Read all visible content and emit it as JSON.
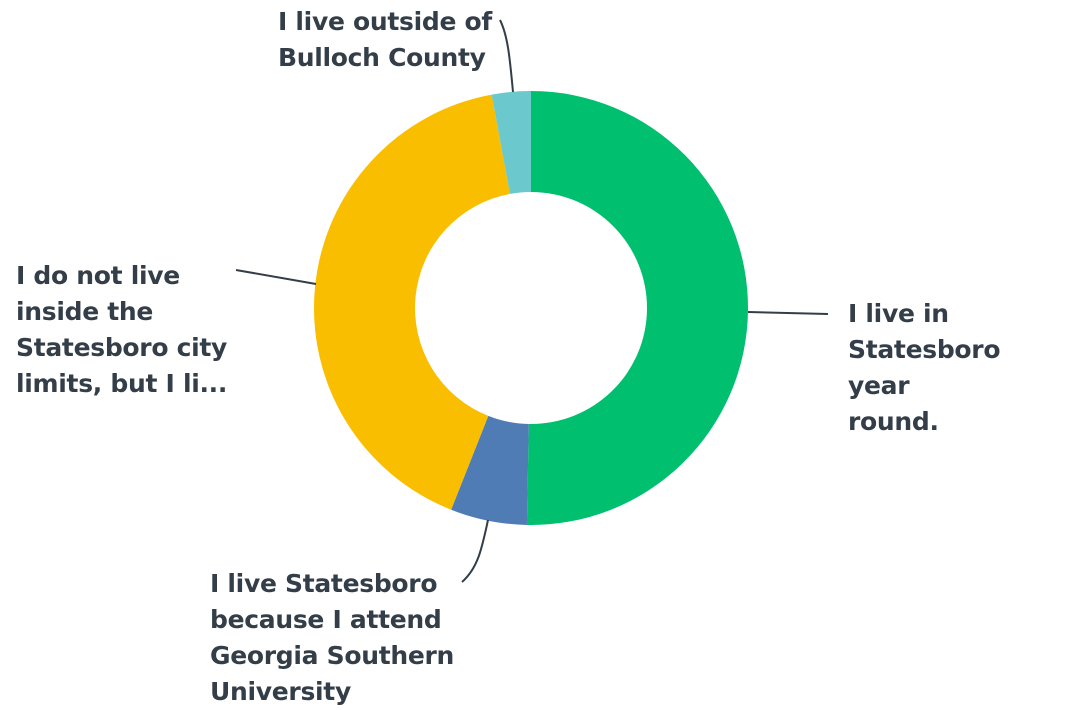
{
  "chart_data": {
    "type": "pie",
    "variant": "donut",
    "title": "",
    "categories": [
      "I live in Statesboro year round.",
      "I live Statesboro because I attend Georgia Southern University",
      "I do not live inside the Statesboro city limits, but I li...",
      "I live outside of Bulloch County"
    ],
    "label_lines": [
      [
        "I live in",
        "Statesboro year",
        "round."
      ],
      [
        "I live Statesboro",
        "because I attend",
        "Georgia Southern",
        "University"
      ],
      [
        "I do not live",
        "inside the",
        "Statesboro city",
        "limits, but I li..."
      ],
      [
        "I live outside of",
        "Bulloch County"
      ]
    ],
    "values": [
      50.3,
      5.7,
      41.1,
      2.9
    ],
    "colors": [
      "#00bf6f",
      "#507cb6",
      "#f9be00",
      "#6bc8cd"
    ],
    "legend": "none"
  }
}
